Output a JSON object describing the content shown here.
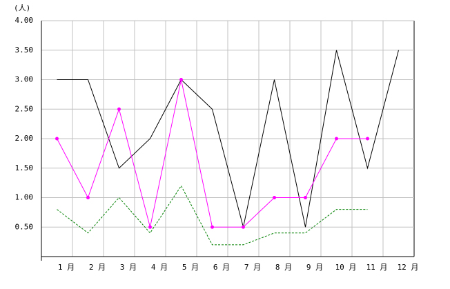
{
  "chart_data": {
    "type": "line",
    "unit_label": "(人)",
    "categories": [
      "1 月",
      "2 月",
      "3 月",
      "4 月",
      "5 月",
      "6 月",
      "7 月",
      "8 月",
      "9 月",
      "10 月",
      "11 月",
      "12 月"
    ],
    "series": [
      {
        "color": "#000000",
        "dash": false,
        "marker": false,
        "values": [
          3.0,
          3.0,
          1.5,
          2.0,
          3.0,
          2.5,
          0.5,
          3.0,
          0.5,
          3.5,
          1.5,
          3.5
        ]
      },
      {
        "color": "#ff00ff",
        "dash": false,
        "marker": true,
        "values": [
          2.0,
          1.0,
          2.5,
          0.5,
          3.0,
          0.5,
          0.5,
          1.0,
          1.0,
          2.0,
          2.0,
          null
        ]
      },
      {
        "color": "#008000",
        "dash": true,
        "marker": false,
        "values": [
          0.8,
          0.4,
          1.0,
          0.4,
          1.2,
          0.2,
          0.2,
          0.4,
          0.4,
          0.8,
          0.8,
          null
        ]
      }
    ],
    "ylim": [
      0,
      4
    ],
    "yticks": [
      {
        "value": 0.5,
        "label": "0.50"
      },
      {
        "value": 1,
        "label": "1.00"
      },
      {
        "value": 1.5,
        "label": "1.50"
      },
      {
        "value": 2,
        "label": "2.00"
      },
      {
        "value": 2.5,
        "label": "2.50"
      },
      {
        "value": 3,
        "label": "3.00"
      },
      {
        "value": 3.5,
        "label": "3.50"
      },
      {
        "value": 4,
        "label": "4.00"
      }
    ],
    "grid": true
  }
}
